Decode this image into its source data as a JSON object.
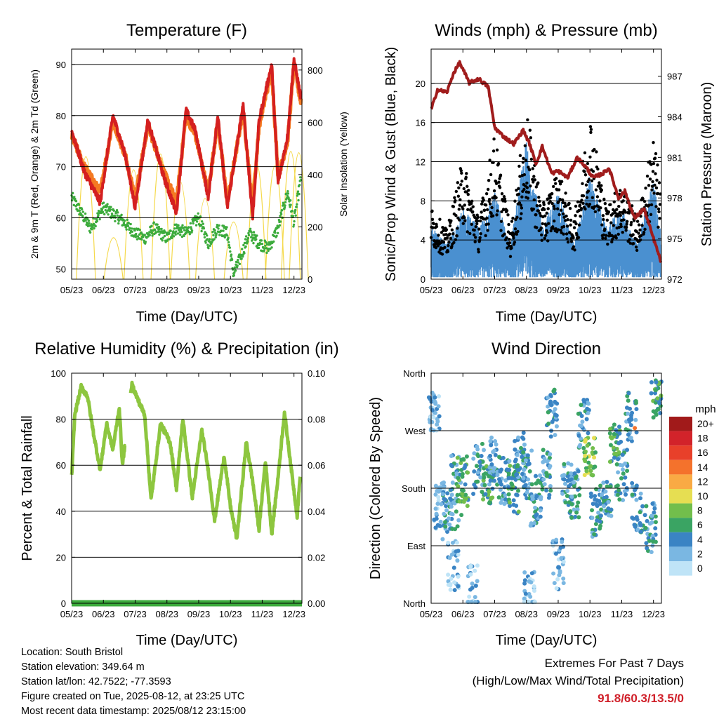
{
  "footer": {
    "location": "Location: South Bristol",
    "elevation": "Station elevation: 349.64 m",
    "latlon": "Station lat/lon: 42.7522; -77.3593",
    "created": "Figure created on Tue, 2025-08-12, at 23:25 UTC",
    "latest": "Most recent data timestamp: 2025/08/12 23:15:00"
  },
  "extremes": {
    "title": "Extremes For Past 7 Days",
    "subtitle": "(High/Low/Max Wind/Total Precipitation)",
    "values": "91.8/60.3/13.5/0"
  },
  "colors": {
    "temp2m": "#d42020",
    "temp9m": "#f47a22",
    "dewpoint": "#3cab3c",
    "solar": "#f5d94a",
    "wind_sonic": "#4a90d0",
    "gust": "#000000",
    "pressure": "#a01c1c",
    "humidity": "#8dc63f",
    "precip": "#3cab3c"
  },
  "chart_data": [
    {
      "id": "temperature",
      "type": "line",
      "title": "Temperature (F)",
      "xlabel": "Time (Day/UTC)",
      "ylabel": "2m & 9m T (Red, Orange) & 2m Td (Green)",
      "y2label": "Solar Insolation (Yellow)",
      "x_ticks": [
        "05/23",
        "06/23",
        "07/23",
        "08/23",
        "09/23",
        "10/23",
        "11/23",
        "12/23"
      ],
      "y_ticks": [
        50,
        60,
        70,
        80,
        90
      ],
      "y2_ticks": [
        0,
        200,
        400,
        600,
        800
      ],
      "ylim": [
        48,
        93
      ],
      "y2lim": [
        0,
        880
      ],
      "xlim": [
        5,
        12.25
      ],
      "grid": "horizontal",
      "series": [
        {
          "name": "2m T",
          "axis": "left",
          "x": [
            5,
            5.4,
            5.9,
            6.3,
            6.7,
            7.0,
            7.4,
            7.9,
            8.3,
            8.6,
            8.9,
            9.3,
            9.6,
            9.9,
            10.4,
            10.7,
            10.9,
            11.3,
            11.5,
            11.8,
            12.0,
            12.2
          ],
          "y": [
            77,
            69,
            63,
            80,
            72,
            62,
            79,
            68,
            61,
            81,
            77,
            64,
            80,
            62,
            82,
            60,
            79,
            90,
            67,
            76,
            91,
            84
          ]
        },
        {
          "name": "9m T",
          "axis": "left",
          "x": [
            5,
            5.4,
            5.9,
            6.3,
            6.7,
            7.0,
            7.4,
            7.9,
            8.3,
            8.6,
            8.9,
            9.3,
            9.6,
            9.9,
            10.4,
            10.7,
            10.9,
            11.3,
            11.5,
            11.8,
            12.0,
            12.2
          ],
          "y": [
            76,
            70,
            65,
            79,
            72,
            64,
            78,
            69,
            63,
            80,
            76,
            65,
            79,
            63,
            81,
            62,
            78,
            89,
            68,
            75,
            90,
            83
          ]
        },
        {
          "name": "2m Td",
          "axis": "left",
          "x": [
            5,
            5.3,
            5.6,
            6.0,
            6.5,
            7.0,
            7.3,
            7.6,
            8.0,
            8.3,
            8.6,
            9.0,
            9.3,
            9.6,
            9.9,
            10.1,
            10.3,
            10.6,
            10.9,
            11.2,
            11.5,
            11.8,
            12.0,
            12.2
          ],
          "y": [
            64,
            61,
            58,
            62,
            60,
            57,
            56,
            58,
            56,
            58,
            57,
            60,
            55,
            58,
            57,
            49,
            52,
            57,
            55,
            54,
            58,
            65,
            59,
            67
          ]
        },
        {
          "name": "Solar",
          "axis": "right",
          "peaks_x": [
            5.45,
            6.32,
            6.95,
            7.8,
            8.42,
            9.2,
            10.1,
            10.82,
            11.4,
            11.9,
            12.15
          ],
          "peaks_y": [
            830,
            210,
            730,
            850,
            640,
            510,
            330,
            780,
            760,
            870,
            860
          ]
        }
      ]
    },
    {
      "id": "winds",
      "type": "scatter",
      "title": "Winds (mph) & Pressure (mb)",
      "xlabel": "Time (Day/UTC)",
      "ylabel": "Sonic/Prop Wind & Gust (Blue, Black)",
      "y2label": "Station Pressure (Maroon)",
      "x_ticks": [
        "05/23",
        "06/23",
        "07/23",
        "08/23",
        "09/23",
        "10/23",
        "11/23",
        "12/23"
      ],
      "y_ticks": [
        0,
        4,
        8,
        12,
        16,
        20
      ],
      "y2_ticks": [
        972,
        975,
        978,
        981,
        984,
        987
      ],
      "ylim": [
        0,
        23.5
      ],
      "y2lim": [
        972,
        989
      ],
      "xlim": [
        5,
        12.25
      ],
      "grid": "horizontal",
      "series": [
        {
          "name": "Sonic/Prop Wind",
          "axis": "left",
          "x": [
            5,
            5.5,
            6,
            6.5,
            7,
            7.5,
            8,
            8.5,
            9,
            9.5,
            10,
            10.5,
            11,
            11.5,
            12,
            12.2
          ],
          "y": [
            3,
            2,
            4,
            3,
            5,
            2,
            8,
            3,
            5,
            2,
            6,
            3,
            4,
            2,
            6,
            3
          ]
        },
        {
          "name": "Gust",
          "axis": "left",
          "x": [
            5,
            5.5,
            6,
            6.5,
            7,
            7.5,
            8,
            8.5,
            9,
            9.5,
            10,
            10.5,
            11,
            11.5,
            12,
            12.2
          ],
          "y": [
            6,
            4,
            10,
            5,
            12,
            4,
            14,
            6,
            9,
            5,
            14,
            6,
            8,
            5,
            12,
            8
          ]
        },
        {
          "name": "Pressure",
          "axis": "right",
          "x": [
            5,
            5.2,
            5.5,
            5.7,
            5.9,
            6.2,
            6.5,
            6.8,
            7.0,
            7.3,
            7.6,
            7.9,
            8.1,
            8.3,
            8.5,
            8.8,
            9.0,
            9.3,
            9.6,
            9.9,
            10.1,
            10.4,
            10.6,
            10.9,
            11.1,
            11.4,
            11.7,
            12.0,
            12.25
          ],
          "y": [
            984.5,
            986.0,
            985.8,
            987.2,
            988.0,
            986.5,
            986.8,
            986.2,
            983.2,
            982.5,
            982.0,
            983.0,
            982.0,
            980.5,
            981.8,
            979.8,
            980.0,
            979.5,
            981.0,
            980.2,
            979.5,
            979.8,
            980.2,
            978.0,
            978.5,
            976.5,
            977.2,
            975.0,
            973.2
          ]
        }
      ]
    },
    {
      "id": "humidity",
      "type": "line",
      "title": "Relative Humidity (%) & Precipitation (in)",
      "xlabel": "Time (Day/UTC)",
      "ylabel": "Percent & Total Rainfall",
      "x_ticks": [
        "05/23",
        "06/23",
        "07/23",
        "08/23",
        "09/23",
        "10/23",
        "11/23",
        "12/23"
      ],
      "y_ticks": [
        0,
        20,
        40,
        60,
        80,
        100
      ],
      "y2_ticks": [
        "0.00",
        "0.02",
        "0.04",
        "0.06",
        "0.08",
        "0.10"
      ],
      "ylim": [
        0,
        100
      ],
      "y2lim": [
        0,
        0.1
      ],
      "xlim": [
        5,
        12.25
      ],
      "grid": "horizontal",
      "series": [
        {
          "name": "Relative Humidity",
          "axis": "left",
          "x": [
            5,
            5.1,
            5.3,
            5.5,
            5.7,
            5.9,
            6.1,
            6.3,
            6.5,
            6.6,
            6.9,
            7.1,
            7.3,
            7.5,
            7.8,
            8.1,
            8.3,
            8.5,
            8.8,
            9.1,
            9.3,
            9.5,
            9.8,
            10.0,
            10.2,
            10.5,
            10.7,
            10.9,
            11.1,
            11.3,
            11.5,
            11.7,
            11.9,
            12.1,
            12.2
          ],
          "y": [
            55,
            82,
            94,
            90,
            73,
            58,
            78,
            67,
            85,
            60,
            95,
            88,
            82,
            45,
            78,
            70,
            50,
            80,
            46,
            75,
            58,
            36,
            64,
            42,
            28,
            70,
            53,
            32,
            62,
            30,
            55,
            83,
            60,
            38,
            56
          ]
        },
        {
          "name": "Total Precipitation",
          "axis": "right",
          "x": [
            5,
            12.25
          ],
          "y": [
            0,
            0
          ]
        }
      ]
    },
    {
      "id": "direction",
      "type": "scatter",
      "title": "Wind Direction",
      "xlabel": "Time (Day/UTC)",
      "ylabel": "Direction (Colored By Speed)",
      "x_ticks": [
        "05/23",
        "06/23",
        "07/23",
        "08/23",
        "09/23",
        "10/23",
        "11/23",
        "12/23"
      ],
      "y_ticks": [
        "North",
        "East",
        "South",
        "West",
        "North"
      ],
      "ylim": [
        0,
        360
      ],
      "xlim": [
        5,
        12.25
      ],
      "grid": "horizontal",
      "colorbar": {
        "title": "mph",
        "labels": [
          "20+",
          "18",
          "16",
          "14",
          "12",
          "10",
          "8",
          "6",
          "4",
          "2",
          "0"
        ],
        "colors": [
          "#a11a1a",
          "#d2232a",
          "#e8402a",
          "#f4722c",
          "#f9aa44",
          "#e6de52",
          "#72be4c",
          "#3aa463",
          "#3a84c4",
          "#7ab7e2",
          "#bfe4f7"
        ]
      }
    }
  ]
}
